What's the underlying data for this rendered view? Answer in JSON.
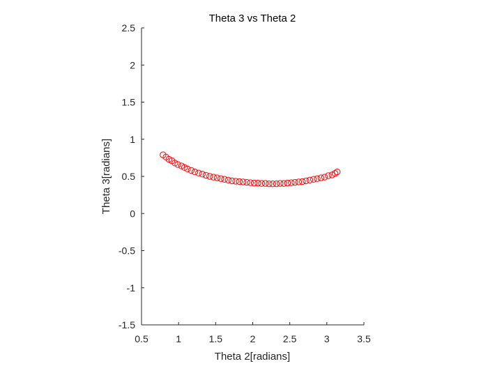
{
  "chart_data": {
    "type": "scatter",
    "title": "Theta 3 vs Theta 2",
    "xlabel": "Theta 2[radians]",
    "ylabel": "Theta 3[radians]",
    "xlim": [
      0.5,
      3.5
    ],
    "ylim": [
      -1.5,
      2.5
    ],
    "xticks": [
      "0.5",
      "1",
      "1.5",
      "2",
      "2.5",
      "3",
      "3.5"
    ],
    "yticks": [
      "-1.5",
      "-1",
      "-0.5",
      "0",
      "0.5",
      "1",
      "1.5",
      "2",
      "2.5"
    ],
    "grid": false,
    "marker": "circle",
    "marker_color": "#ff0000",
    "series": [
      {
        "x": [
          0.79,
          0.83,
          0.87,
          0.91,
          0.95,
          0.99,
          1.04,
          1.08,
          1.12,
          1.17,
          1.22,
          1.27,
          1.32,
          1.37,
          1.42,
          1.47,
          1.52,
          1.57,
          1.62,
          1.67,
          1.72,
          1.77,
          1.82,
          1.87,
          1.92,
          1.97,
          2.02,
          2.07,
          2.12,
          2.17,
          2.22,
          2.27,
          2.32,
          2.37,
          2.42,
          2.47,
          2.52,
          2.57,
          2.62,
          2.67,
          2.72,
          2.77,
          2.82,
          2.87,
          2.92,
          2.97,
          3.02,
          3.07,
          3.11,
          3.14
        ],
        "y": [
          0.79,
          0.76,
          0.73,
          0.71,
          0.68,
          0.66,
          0.64,
          0.62,
          0.6,
          0.58,
          0.56,
          0.545,
          0.53,
          0.515,
          0.5,
          0.49,
          0.48,
          0.47,
          0.46,
          0.45,
          0.44,
          0.435,
          0.43,
          0.425,
          0.42,
          0.415,
          0.41,
          0.41,
          0.405,
          0.405,
          0.4,
          0.4,
          0.4,
          0.405,
          0.405,
          0.41,
          0.415,
          0.42,
          0.425,
          0.43,
          0.44,
          0.45,
          0.46,
          0.47,
          0.48,
          0.49,
          0.51,
          0.52,
          0.54,
          0.56
        ]
      }
    ]
  }
}
